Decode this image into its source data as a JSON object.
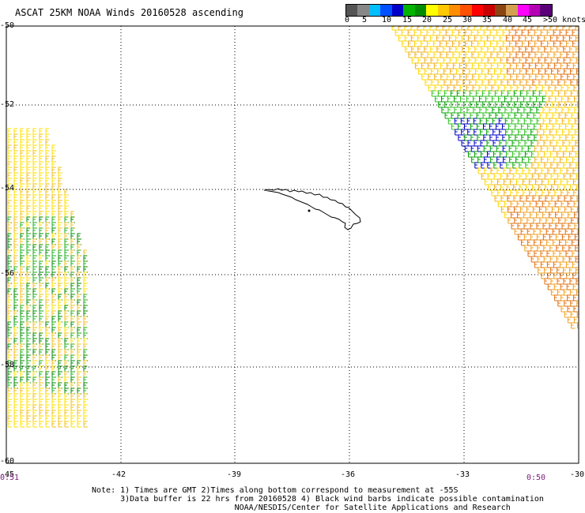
{
  "title": "ASCAT 25KM NOAA Winds 20160528 ascending",
  "colorbar": {
    "colors": [
      "#555555",
      "#888888",
      "#00bfff",
      "#0050ff",
      "#0000c8",
      "#00b400",
      "#008c00",
      "#ffff00",
      "#ffc800",
      "#ff8c00",
      "#ff5000",
      "#ff0000",
      "#c80000",
      "#8b4513",
      "#d2a050",
      "#ff00ff",
      "#b400b4",
      "#5a0078"
    ],
    "labels": [
      "0",
      "5",
      "10",
      "15",
      "20",
      "25",
      "30",
      "35",
      "40",
      "45",
      ">50 knots"
    ]
  },
  "axes": {
    "lat_labels": [
      "-50",
      "-52",
      "-54",
      "-56",
      "-58",
      "-60"
    ],
    "lon_labels": [
      "-45",
      "-42",
      "-39",
      "-36",
      "-33",
      "-30"
    ]
  },
  "times": {
    "left": "0:51",
    "right": "0:50"
  },
  "notes": [
    "Note: 1) Times are GMT 2)Times along bottom correspond to measurement at -55S",
    "      3)Data buffer is 22 hrs from 20160528 4) Black wind barbs indicate possible contamination",
    "                              NOAA/NESDIS/Center for Satellite Applications and Research"
  ]
}
